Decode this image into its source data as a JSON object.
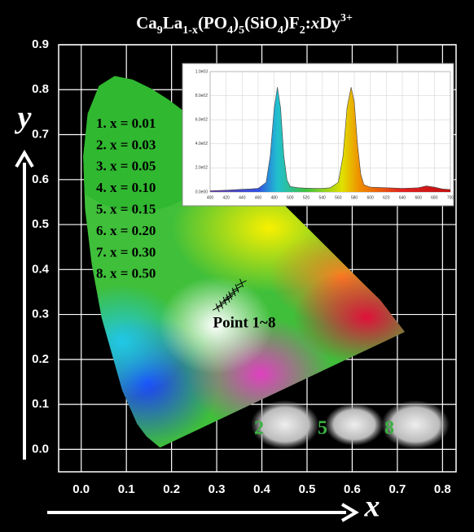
{
  "chart_data": [
    {
      "type": "scatter",
      "title": [
        {
          "text": "Ca"
        },
        {
          "text": "9",
          "sub": true
        },
        {
          "text": "La"
        },
        {
          "text": "1-x",
          "sub": true
        },
        {
          "text": "(PO"
        },
        {
          "text": "4",
          "sub": true
        },
        {
          "text": ")"
        },
        {
          "text": "5",
          "sub": true
        },
        {
          "text": "(SiO"
        },
        {
          "text": "4",
          "sub": true
        },
        {
          "text": ")F"
        },
        {
          "text": "2",
          "sub": true
        },
        {
          "text": ":"
        },
        {
          "text": "x",
          "italic": true
        },
        {
          "text": "Dy"
        },
        {
          "text": "3+",
          "sup": true
        }
      ],
      "xlabel": "x",
      "ylabel": "y",
      "annotations": [
        "1. x = 0.01",
        "2. x = 0.03",
        "3. x = 0.05",
        "4. x = 0.10",
        "5. x = 0.15",
        "6. x = 0.20",
        "7. x = 0.30",
        "8. x = 0.50"
      ],
      "point_label": "Point 1~8",
      "sample_labels": [
        "2",
        "5",
        "8"
      ],
      "xlim": [
        -0.05,
        0.83
      ],
      "ylim": [
        -0.05,
        0.9
      ],
      "xticks": [
        {
          "value": 0,
          "label": "0.0"
        },
        0.1,
        0.2,
        0.3,
        0.4,
        0.5,
        0.6,
        0.7,
        0.8
      ],
      "yticks": [
        {
          "value": 0,
          "label": "0.0"
        },
        0.1,
        0.2,
        0.3,
        0.4,
        0.5,
        0.6,
        0.7,
        0.8,
        0.9
      ],
      "grid": true,
      "series": [
        {
          "color": "#000000",
          "x": [
            0.302,
            0.31,
            0.318,
            0.325,
            0.33,
            0.338,
            0.345,
            0.355
          ],
          "y": [
            0.315,
            0.322,
            0.33,
            0.336,
            0.342,
            0.35,
            0.358,
            0.37
          ]
        }
      ]
    },
    {
      "type": "area",
      "x": [
        400,
        410,
        420,
        430,
        440,
        450,
        460,
        470,
        475,
        480,
        484,
        488,
        492,
        496,
        500,
        510,
        520,
        530,
        540,
        550,
        560,
        566,
        571,
        576,
        580,
        584,
        588,
        592,
        600,
        620,
        640,
        660,
        670,
        680,
        690,
        700
      ],
      "values": [
        10,
        12,
        15,
        18,
        22,
        25,
        30,
        80,
        300,
        700,
        870,
        700,
        300,
        100,
        45,
        35,
        32,
        30,
        30,
        35,
        80,
        300,
        700,
        870,
        750,
        400,
        150,
        60,
        40,
        35,
        30,
        35,
        50,
        40,
        25,
        20
      ],
      "xlim": [
        400,
        700
      ],
      "ylim": [
        0,
        1000
      ],
      "xticks": [
        400,
        420,
        440,
        460,
        480,
        500,
        520,
        540,
        560,
        580,
        600,
        620,
        640,
        660,
        680,
        700
      ],
      "yticks": [
        {
          "value": 0,
          "label": "0.0e00"
        },
        {
          "value": 200,
          "label": "2.0e02"
        },
        {
          "value": 400,
          "label": "4.0e02"
        },
        {
          "value": 600,
          "label": "6.0e02"
        },
        {
          "value": 800,
          "label": "8.0e02"
        },
        {
          "value": 1000,
          "label": "1.0e03"
        }
      ],
      "grid": true
    }
  ]
}
